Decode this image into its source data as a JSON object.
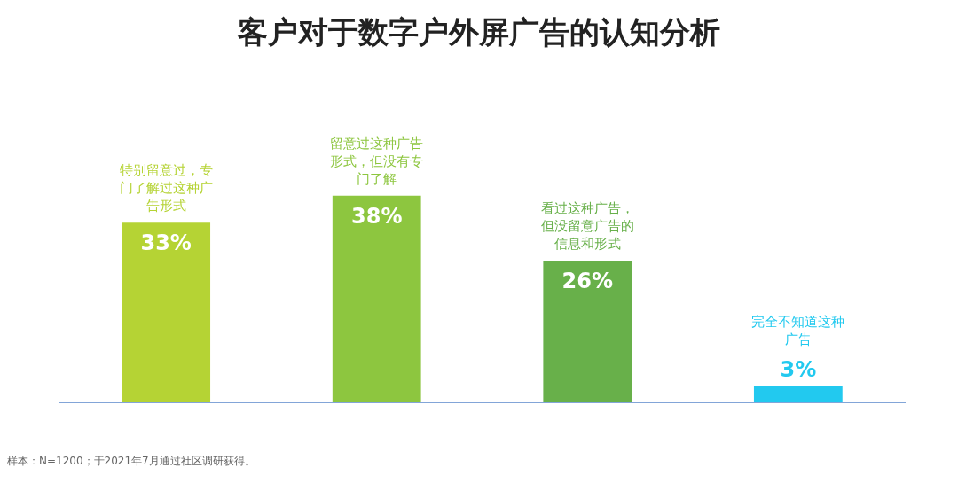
{
  "chart_data": {
    "type": "bar",
    "title": "客户对于数字户外屏广告的认知分析",
    "categories": [
      "特别留意过，专门了解过这种广告形式",
      "留意过这种广告形式，但没有专门了解",
      "看过这种广告，但没留意广告的信息和形式",
      "完全不知道这种广告"
    ],
    "values": [
      33,
      38,
      26,
      3
    ],
    "colors": [
      "#b5d334",
      "#8dc63f",
      "#68b04a",
      "#22c9ef"
    ],
    "value_labels": [
      "33%",
      "38%",
      "26%",
      "3%"
    ],
    "annotations": [
      "样本：N=1200；于2021年7月通过社区调研获得。"
    ]
  }
}
